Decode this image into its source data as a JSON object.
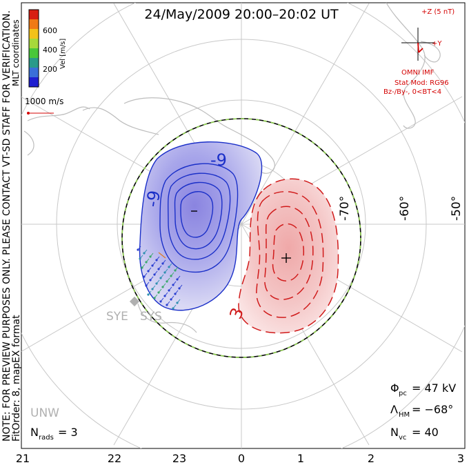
{
  "title": "24/May/2009 20:00–20:02 UT",
  "colorbar": {
    "unit_label": "Vel [m/s]",
    "ticks": [
      "200",
      "400",
      "600"
    ],
    "colors": [
      "#1f1fd0",
      "#3a6fd8",
      "#2a9a8a",
      "#49c83a",
      "#a6d93a",
      "#f2c21a",
      "#f07a14",
      "#d81e12"
    ]
  },
  "coordinate_label": "MLT coordinates",
  "vertical_note": "NOTE: FOR PREVIEW PURPOSES ONLY. PLEASE CONTACT VT-SD STAFF FOR VERIFICATION.",
  "vertical_fit": "FitOrder: 8, mapEX format",
  "reference_vector_label": "1000 m/s",
  "imf": {
    "scale_label": "+Z (5 nT)",
    "y_label": "+Y",
    "source": "OMNI IMF",
    "model": "Stat Mod: RG96",
    "conditions": "Bz-/By-, 0<BT<4"
  },
  "latitude_labels": [
    "-70°",
    "-60°",
    "-50°"
  ],
  "mlt_labels": [
    "21",
    "22",
    "23",
    "0",
    "1",
    "2",
    "3"
  ],
  "contour_labels": {
    "negative": "-9",
    "positive": "3",
    "neg_left": "-9"
  },
  "stations": {
    "sye": "SYE",
    "sys": "SYS",
    "unw": "UNW"
  },
  "stats": {
    "nrads_label": "N",
    "nrads_sub": "rads",
    "nrads_value": "= 3",
    "phi_label": "Φ",
    "phi_sub": "pc",
    "phi_value": "= 47 kV",
    "lambda_label": "Λ",
    "lambda_sub": "HM",
    "lambda_value": "= −68°",
    "nvc_label": "N",
    "nvc_sub": "vc",
    "nvc_value": "= 40"
  },
  "colors": {
    "negative_contour": "#1a2fc8",
    "positive_contour": "#d01a1a",
    "boundary": "#8fd14f"
  }
}
